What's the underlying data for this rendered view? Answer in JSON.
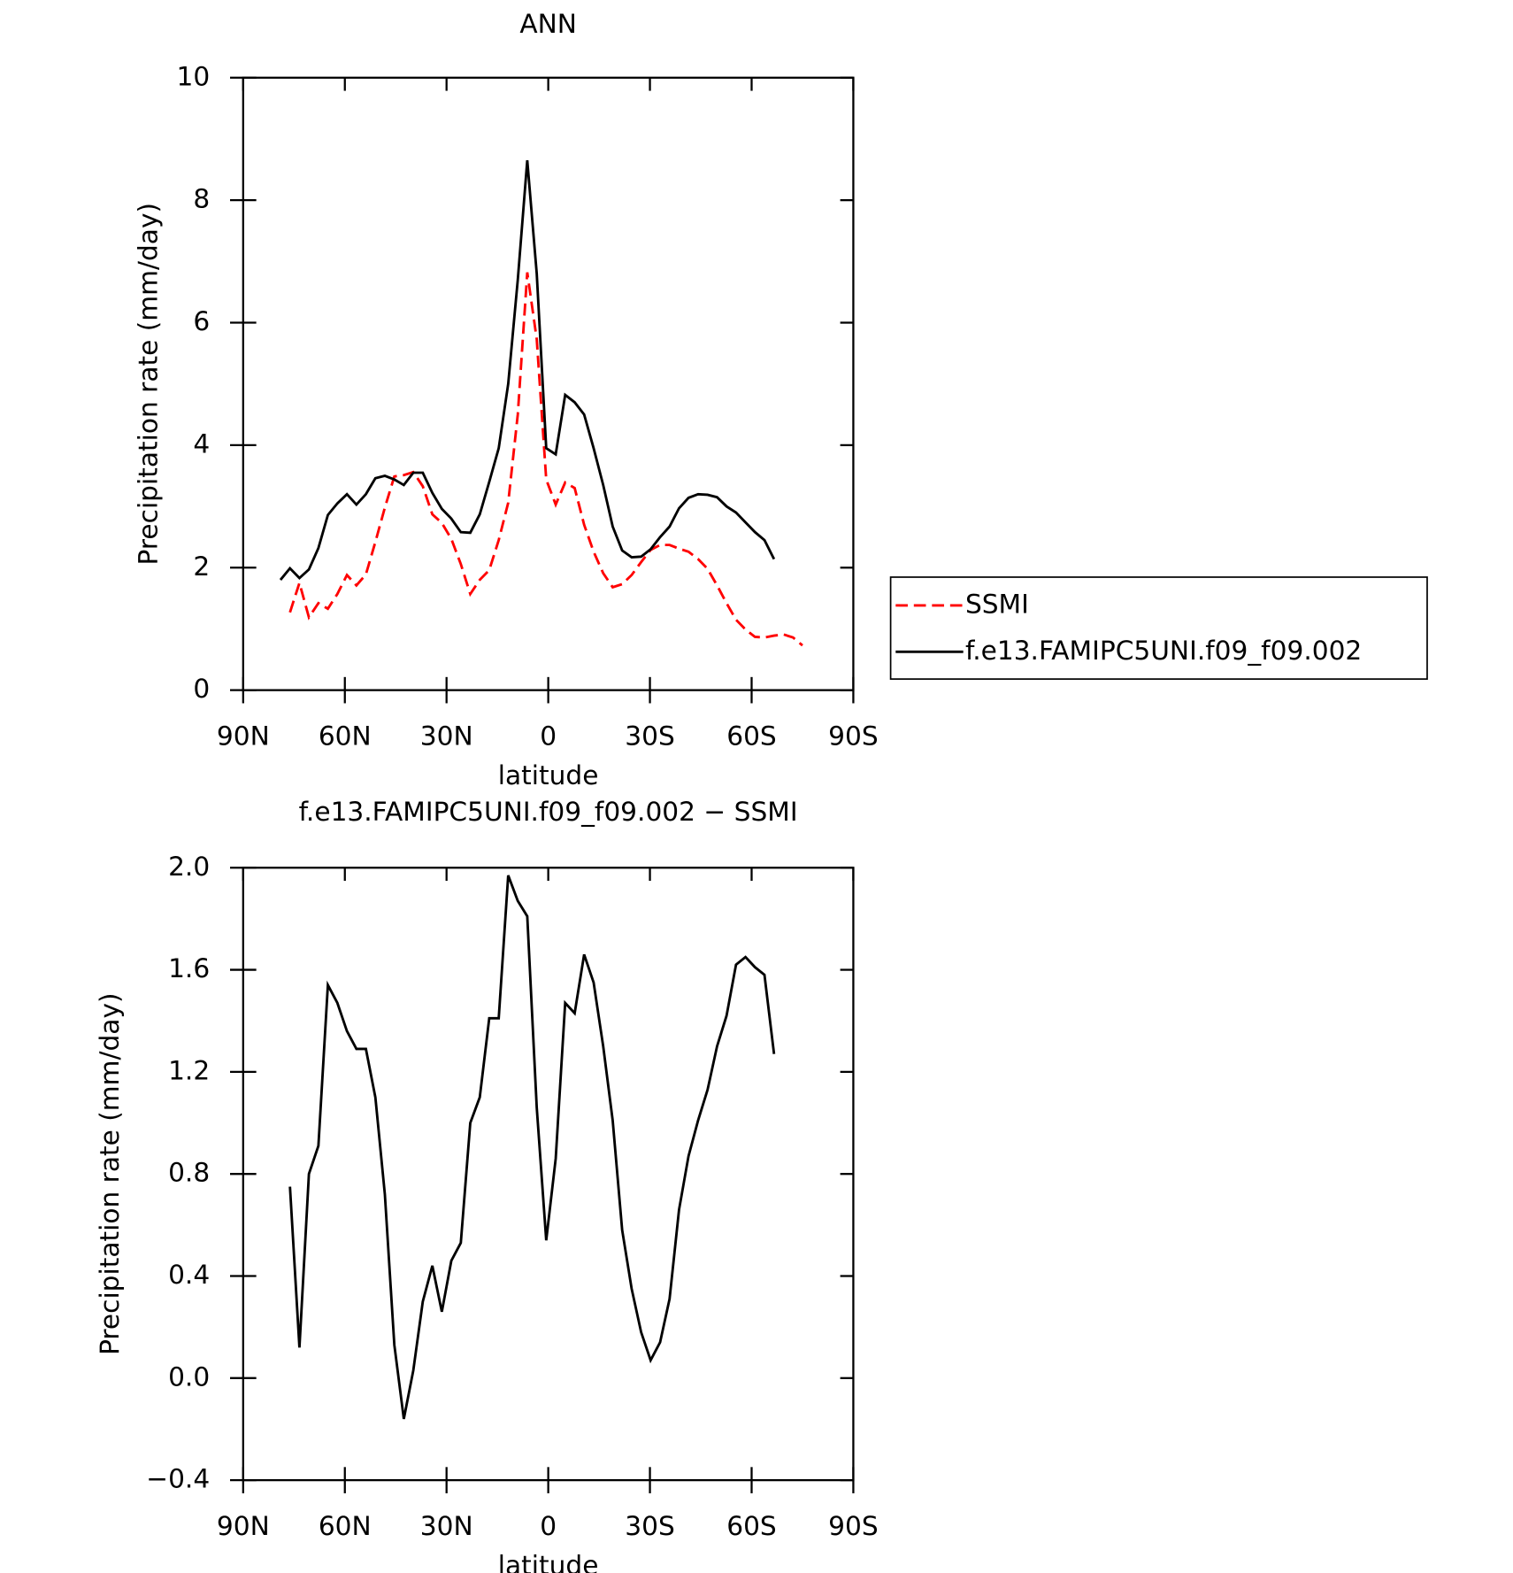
{
  "chart_data": [
    {
      "type": "line",
      "title": "ANN",
      "xlabel": "latitude",
      "ylabel": "Precipitation rate (mm/day)",
      "x": [
        79.0,
        76.2,
        73.4,
        70.6,
        67.8,
        65.0,
        62.2,
        59.4,
        56.6,
        53.8,
        51.0,
        48.2,
        45.4,
        42.6,
        39.8,
        37.0,
        34.2,
        31.4,
        28.6,
        25.8,
        23.0,
        20.2,
        17.4,
        14.6,
        11.8,
        9.0,
        6.2,
        3.4,
        0.6,
        -2.2,
        -5.0,
        -7.8,
        -10.6,
        -13.4,
        -16.2,
        -19.0,
        -21.8,
        -24.6,
        -27.4,
        -30.2,
        -33.0,
        -35.8,
        -38.6,
        -41.4,
        -44.2,
        -47.0,
        -49.8,
        -52.6,
        -55.4,
        -58.2,
        -61.0,
        -63.8,
        -66.6,
        -69.4,
        -72.2,
        -75.0
      ],
      "series": [
        {
          "name": "SSMI",
          "color": "#ff0000",
          "dashed": true,
          "values": [
            null,
            1.27,
            1.75,
            1.19,
            1.42,
            1.33,
            1.57,
            1.88,
            1.71,
            1.89,
            2.42,
            2.98,
            3.49,
            3.51,
            3.56,
            3.33,
            2.87,
            2.73,
            2.47,
            2.06,
            1.57,
            1.8,
            1.96,
            2.45,
            3.06,
            4.5,
            6.82,
            5.73,
            3.44,
            3.03,
            3.39,
            3.3,
            2.7,
            2.26,
            1.91,
            1.68,
            1.73,
            1.88,
            2.09,
            2.29,
            2.37,
            2.37,
            2.31,
            2.26,
            2.14,
            1.98,
            1.71,
            1.42,
            1.15,
            0.99,
            0.87,
            0.86,
            0.89,
            0.91,
            0.86,
            0.73
          ]
        },
        {
          "name": "f.e13.FAMIPC5UNI.f09_f09.002",
          "color": "#000000",
          "dashed": false,
          "values": [
            1.8,
            1.99,
            1.83,
            1.97,
            2.32,
            2.86,
            3.05,
            3.2,
            3.03,
            3.2,
            3.46,
            3.5,
            3.44,
            3.35,
            3.55,
            3.55,
            3.22,
            2.96,
            2.8,
            2.58,
            2.57,
            2.87,
            3.4,
            3.95,
            5.0,
            6.7,
            8.65,
            6.8,
            3.95,
            3.85,
            4.82,
            4.7,
            4.5,
            3.95,
            3.35,
            2.67,
            2.28,
            2.17,
            2.18,
            2.3,
            2.5,
            2.67,
            2.97,
            3.14,
            3.2,
            3.19,
            3.15,
            3.0,
            2.9,
            2.74,
            2.58,
            2.45,
            2.14,
            null,
            null,
            null
          ]
        }
      ],
      "xlim": [
        90,
        -90
      ],
      "xticks": [
        {
          "value": 90,
          "label": "90N"
        },
        {
          "value": 60,
          "label": "60N"
        },
        {
          "value": 30,
          "label": "30N"
        },
        0,
        {
          "value": -30,
          "label": "30S"
        },
        {
          "value": -60,
          "label": "60S"
        },
        {
          "value": -90,
          "label": "90S"
        }
      ],
      "ylim": [
        0,
        10
      ],
      "yticks": [
        0,
        2,
        4,
        6,
        8,
        10
      ],
      "legend": "right"
    },
    {
      "type": "line",
      "title": "f.e13.FAMIPC5UNI.f09_f09.002 − SSMI",
      "xlabel": "latitude",
      "ylabel": "Precipitation rate (mm/day)",
      "x": [
        79.0,
        76.2,
        73.4,
        70.6,
        67.8,
        65.0,
        62.2,
        59.4,
        56.6,
        53.8,
        51.0,
        48.2,
        45.4,
        42.6,
        39.8,
        37.0,
        34.2,
        31.4,
        28.6,
        25.8,
        23.0,
        20.2,
        17.4,
        14.6,
        11.8,
        9.0,
        6.2,
        3.4,
        0.6,
        -2.2,
        -5.0,
        -7.8,
        -10.6,
        -13.4,
        -16.2,
        -19.0,
        -21.8,
        -24.6,
        -27.4,
        -30.2,
        -33.0,
        -35.8,
        -38.6,
        -41.4,
        -44.2,
        -47.0,
        -49.8,
        -52.6,
        -55.4,
        -58.2,
        -61.0,
        -63.8,
        -66.6
      ],
      "values": [
        null,
        0.75,
        0.12,
        0.8,
        0.91,
        1.54,
        1.47,
        1.36,
        1.29,
        1.29,
        1.1,
        0.72,
        0.13,
        -0.16,
        0.03,
        0.3,
        0.44,
        0.26,
        0.46,
        0.53,
        1.0,
        1.1,
        1.41,
        1.41,
        1.97,
        1.87,
        1.81,
        1.06,
        0.54,
        0.86,
        1.47,
        1.43,
        1.66,
        1.55,
        1.3,
        1.01,
        0.58,
        0.35,
        0.18,
        0.07,
        0.14,
        0.31,
        0.66,
        0.87,
        1.01,
        1.13,
        1.3,
        1.42,
        1.62,
        1.65,
        1.61,
        1.58,
        1.27
      ],
      "color": "#000000",
      "xlim": [
        90,
        -90
      ],
      "xticks": [
        {
          "value": 90,
          "label": "90N"
        },
        {
          "value": 60,
          "label": "60N"
        },
        {
          "value": 30,
          "label": "30N"
        },
        0,
        {
          "value": -30,
          "label": "30S"
        },
        {
          "value": -60,
          "label": "60S"
        },
        {
          "value": -90,
          "label": "90S"
        }
      ],
      "ylim": [
        -0.4,
        2.0
      ],
      "yticks": [
        {
          "value": -0.4,
          "label": "−0.4"
        },
        {
          "value": 0,
          "label": "0.0"
        },
        0.4,
        0.8,
        1.2,
        1.6,
        {
          "value": 2,
          "label": "2.0"
        }
      ]
    }
  ]
}
